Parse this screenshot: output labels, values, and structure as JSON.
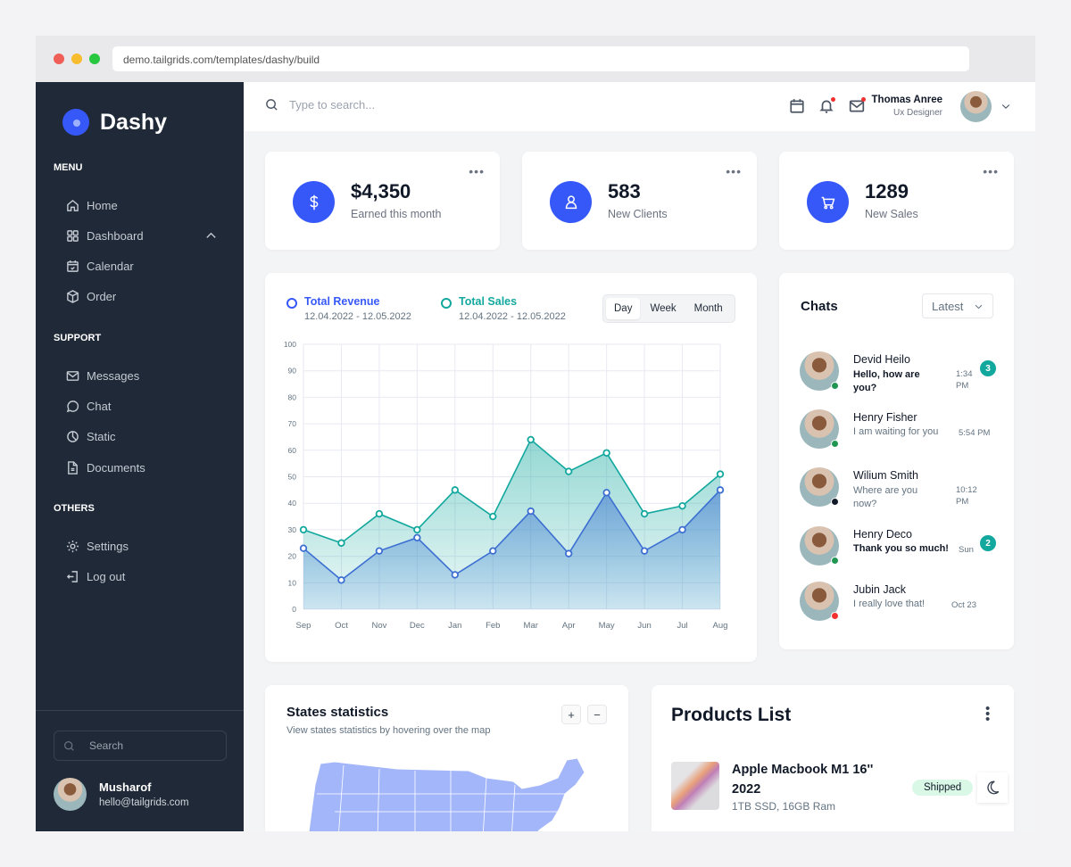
{
  "browser": {
    "url": "demo.tailgrids.com/templates/dashy/build",
    "dots": [
      "#f05f57",
      "#f8bd2e",
      "#27c840"
    ]
  },
  "sidebar": {
    "brand": "Dashy",
    "sections": [
      {
        "title": "MENU",
        "items": [
          {
            "label": "Home",
            "icon": "home-icon"
          },
          {
            "label": "Dashboard",
            "icon": "grid-icon",
            "expanded": true
          },
          {
            "label": "Calendar",
            "icon": "calendar-icon"
          },
          {
            "label": "Order",
            "icon": "box-icon"
          }
        ]
      },
      {
        "title": "SUPPORT",
        "items": [
          {
            "label": "Messages",
            "icon": "mail-icon"
          },
          {
            "label": "Chat",
            "icon": "chat-icon"
          },
          {
            "label": "Static",
            "icon": "pie-icon"
          },
          {
            "label": "Documents",
            "icon": "document-icon"
          }
        ]
      },
      {
        "title": "OTHERS",
        "items": [
          {
            "label": "Settings",
            "icon": "gear-icon"
          },
          {
            "label": "Log out",
            "icon": "logout-icon"
          }
        ]
      }
    ],
    "search_placeholder": "Search",
    "user": {
      "name": "Musharof",
      "email": "hello@tailgrids.com"
    }
  },
  "topbar": {
    "search_placeholder": "Type to search...",
    "user": {
      "name": "Thomas Anree",
      "role": "Ux Designer"
    }
  },
  "stats": [
    {
      "value": "$4,350",
      "label": "Earned this month",
      "icon": "dollar-icon"
    },
    {
      "value": "583",
      "label": "New Clients",
      "icon": "user-icon"
    },
    {
      "value": "1289",
      "label": "New Sales",
      "icon": "cart-icon"
    }
  ],
  "chart_card": {
    "legend": [
      {
        "title": "Total Revenue",
        "date": "12.04.2022 - 12.05.2022",
        "color": "#3758f9"
      },
      {
        "title": "Total Sales",
        "date": "12.04.2022 - 12.05.2022",
        "color": "#13a89e"
      }
    ],
    "periods": [
      "Day",
      "Week",
      "Month"
    ],
    "active_period": "Day"
  },
  "chart_data": {
    "type": "area",
    "categories": [
      "Sep",
      "Oct",
      "Nov",
      "Dec",
      "Jan",
      "Feb",
      "Mar",
      "Apr",
      "May",
      "Jun",
      "Jul",
      "Aug"
    ],
    "series": [
      {
        "name": "Total Revenue",
        "color": "#3c6fd1",
        "values": [
          23,
          11,
          22,
          27,
          13,
          22,
          37,
          21,
          44,
          22,
          30,
          45
        ]
      },
      {
        "name": "Total Sales",
        "color": "#13a89e",
        "values": [
          30,
          25,
          36,
          30,
          45,
          35,
          64,
          52,
          59,
          36,
          39,
          51
        ]
      }
    ],
    "yticks": [
      0,
      10,
      20,
      30,
      40,
      50,
      60,
      70,
      80,
      90,
      100
    ],
    "ylim": [
      0,
      100
    ],
    "grid": true,
    "legend_position": "top"
  },
  "chats": {
    "title": "Chats",
    "filter": "Latest",
    "items": [
      {
        "name": "Devid Heilo",
        "message": "Hello, how are you?",
        "time": "1:34 PM",
        "unread": "3",
        "status": "#219653",
        "bold": true
      },
      {
        "name": "Henry Fisher",
        "message": "I am waiting for you",
        "time": "5:54 PM",
        "unread": null,
        "status": "#219653",
        "bold": false
      },
      {
        "name": "Wilium Smith",
        "message": "Where are you now?",
        "time": "10:12 PM",
        "unread": null,
        "status": "#111928",
        "bold": false
      },
      {
        "name": "Henry Deco",
        "message": "Thank you so much!",
        "time": "Sun",
        "unread": "2",
        "status": "#219653",
        "bold": true
      },
      {
        "name": "Jubin Jack",
        "message": "I really love that!",
        "time": "Oct 23",
        "unread": null,
        "status": "#f23030",
        "bold": false
      }
    ]
  },
  "states": {
    "title": "States statistics",
    "subtitle": "View states statistics by hovering over the map",
    "zoom_in": "+",
    "zoom_out": "−"
  },
  "products": {
    "title": "Products List",
    "items": [
      {
        "name": "Apple Macbook M1 16'' 2022",
        "spec": "1TB SSD, 16GB Ram",
        "status": "Shipped"
      }
    ]
  }
}
